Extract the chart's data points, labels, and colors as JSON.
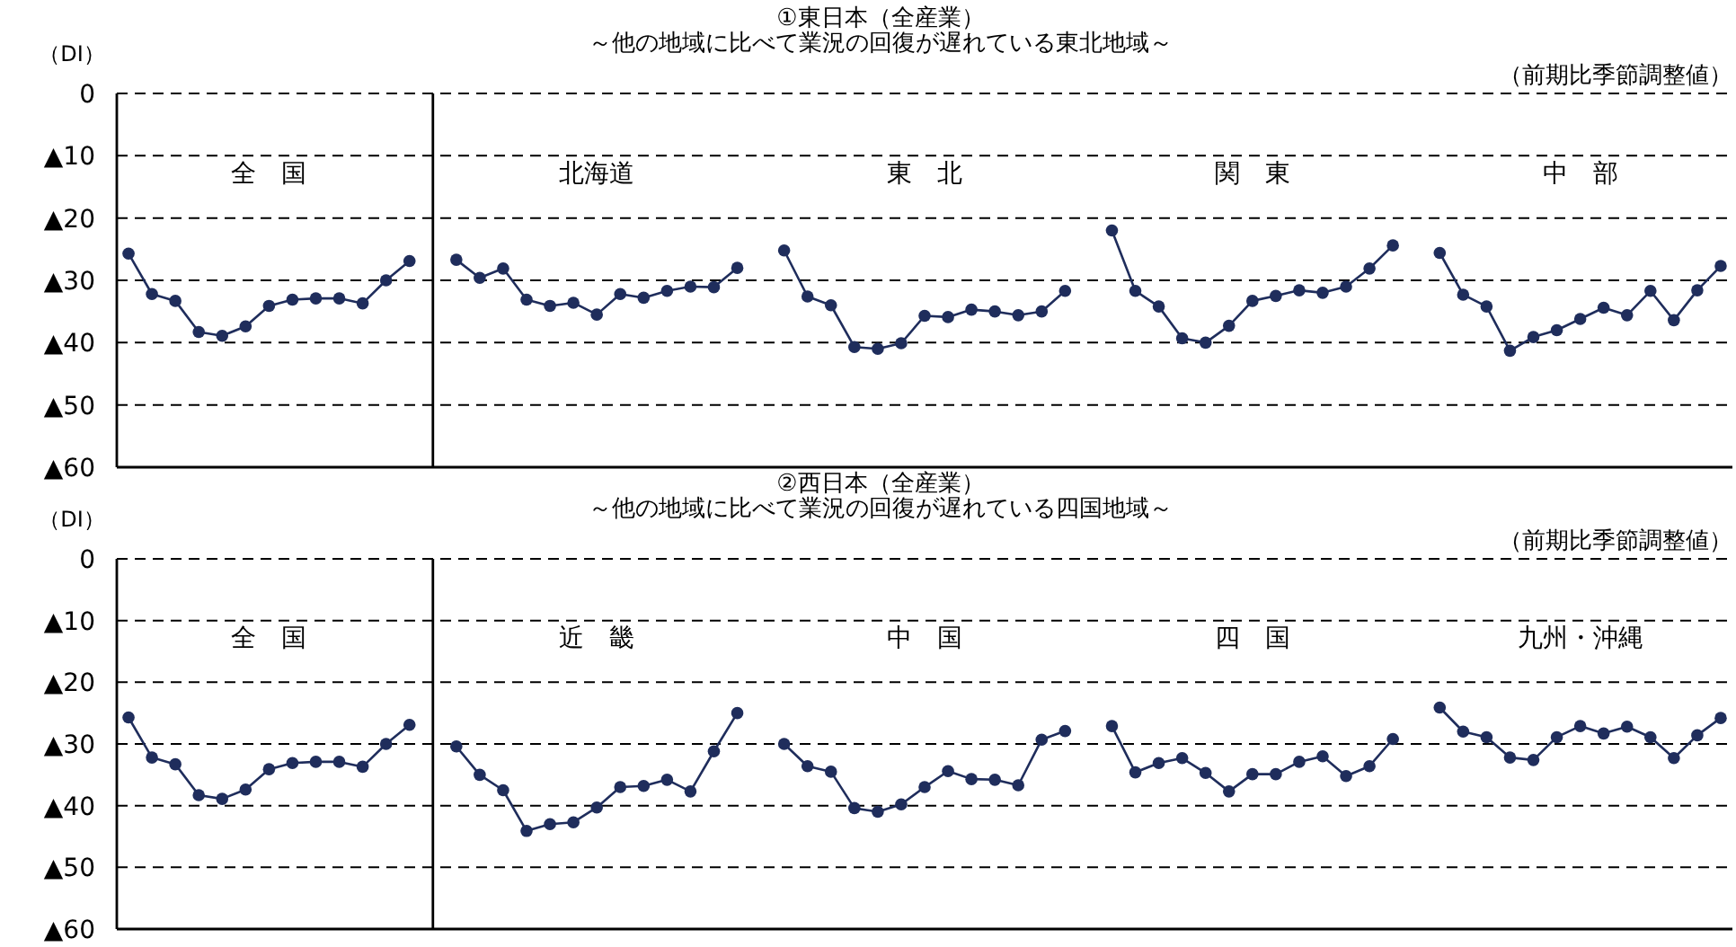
{
  "chart_data": [
    {
      "type": "line",
      "title": "①東日本（全産業）",
      "subtitle": "～他の地域に比べて業況の回復が遅れている東北地域～",
      "ylabel": "（DI）",
      "annotations": [
        "（前期比季節調整値）",
        "全　国",
        "北海道",
        "東　北",
        "関　東",
        "中　部"
      ],
      "categories": [
        null,
        null,
        null,
        null,
        null,
        null,
        null,
        null,
        null,
        null,
        null,
        null,
        null,
        null,
        null,
        null,
        null,
        null,
        null,
        null,
        null,
        null,
        null,
        null,
        null,
        null,
        null,
        null,
        null,
        null,
        null,
        null,
        null,
        null,
        null,
        null,
        null,
        null,
        null,
        null,
        null,
        null,
        null,
        null,
        null,
        null,
        null,
        null,
        null,
        null,
        null,
        null,
        null,
        null,
        null,
        null,
        null,
        null,
        null,
        null,
        null,
        null,
        null,
        null,
        null,
        null,
        null,
        null,
        null
      ],
      "series": [
        {
          "color": "#1f2d5c",
          "values": [
            -25.7,
            -32.2,
            -33.3,
            -38.3,
            -38.9,
            -37.4,
            -34.1,
            -33.1,
            -32.9,
            -32.9,
            -33.7,
            -30,
            -26.9,
            null,
            -26.7,
            -29.6,
            -28.1,
            -33.1,
            -34.1,
            -33.6,
            -35.5,
            -32.2,
            -32.8,
            -31.7,
            -31,
            -31.1,
            -28,
            null,
            -25.2,
            -32.6,
            -34,
            -40.7,
            -41,
            -40.1,
            -35.7,
            -35.9,
            -34.7,
            -35,
            -35.6,
            -35,
            -31.7,
            null,
            -22,
            -31.7,
            -34.2,
            -39.3,
            -40,
            -37.3,
            -33.3,
            -32.5,
            -31.6,
            -32,
            -31,
            -28.1,
            -24.4,
            null,
            -25.6,
            -32.3,
            -34.2,
            -41.3,
            -39.1,
            -38,
            -36.2,
            -34.4,
            -35.6,
            -31.7,
            -36.4,
            -31.6,
            -27.7
          ]
        }
      ],
      "ylim": [
        -60,
        0
      ],
      "yticks": [
        0,
        {
          "value": -10,
          "label": "▲10"
        },
        {
          "value": -20,
          "label": "▲20"
        },
        {
          "value": -30,
          "label": "▲30"
        },
        {
          "value": -40,
          "label": "▲40"
        },
        {
          "value": -50,
          "label": "▲50"
        },
        {
          "value": -60,
          "label": "▲60"
        }
      ],
      "grid": "y",
      "tick_labels": "y",
      "marker": "circle",
      "line_style": "solid"
    },
    {
      "type": "line",
      "title": "②西日本（全産業）",
      "subtitle": "～他の地域に比べて業況の回復が遅れている四国地域～",
      "ylabel": "（DI）",
      "annotations": [
        "（前期比季節調整値）",
        "全　国",
        "近　畿",
        "中　国",
        "四　国",
        "九州・沖縄"
      ],
      "categories": [
        null,
        null,
        null,
        null,
        null,
        null,
        null,
        null,
        null,
        null,
        null,
        null,
        null,
        null,
        null,
        null,
        null,
        null,
        null,
        null,
        null,
        null,
        null,
        null,
        null,
        null,
        null,
        null,
        null,
        null,
        null,
        null,
        null,
        null,
        null,
        null,
        null,
        null,
        null,
        null,
        null,
        null,
        null,
        null,
        null,
        null,
        null,
        null,
        null,
        null,
        null,
        null,
        null,
        null,
        null,
        null,
        null,
        null,
        null,
        null,
        null,
        null,
        null,
        null,
        null,
        null,
        null,
        null,
        null
      ],
      "series": [
        {
          "color": "#1f2d5c",
          "values": [
            -25.7,
            -32.2,
            -33.3,
            -38.3,
            -38.9,
            -37.4,
            -34.1,
            -33.1,
            -32.9,
            -32.9,
            -33.7,
            -30,
            -26.9,
            null,
            -30.4,
            -35,
            -37.5,
            -44.1,
            -43,
            -42.7,
            -40.3,
            -37,
            -36.8,
            -35.8,
            -37.7,
            -31.2,
            -25,
            null,
            -30,
            -33.6,
            -34.5,
            -40.4,
            -41,
            -39.8,
            -37,
            -34.4,
            -35.7,
            -35.8,
            -36.7,
            -29.3,
            -27.9,
            null,
            -27.1,
            -34.6,
            -33.1,
            -32.3,
            -34.7,
            -37.7,
            -34.9,
            -34.9,
            -32.9,
            -32,
            -35.2,
            -33.6,
            -29.2,
            null,
            -24.1,
            -28,
            -28.9,
            -32.2,
            -32.6,
            -28.9,
            -27.1,
            -28.3,
            -27.2,
            -28.9,
            -32.3,
            -28.6,
            -25.8
          ]
        }
      ],
      "ylim": [
        -60,
        0
      ],
      "yticks": [
        0,
        {
          "value": -10,
          "label": "▲10"
        },
        {
          "value": -20,
          "label": "▲20"
        },
        {
          "value": -30,
          "label": "▲30"
        },
        {
          "value": -40,
          "label": "▲40"
        },
        {
          "value": -50,
          "label": "▲50"
        },
        {
          "value": -60,
          "label": "▲60"
        }
      ],
      "grid": "y",
      "tick_labels": "y",
      "marker": "circle",
      "line_style": "solid"
    }
  ]
}
